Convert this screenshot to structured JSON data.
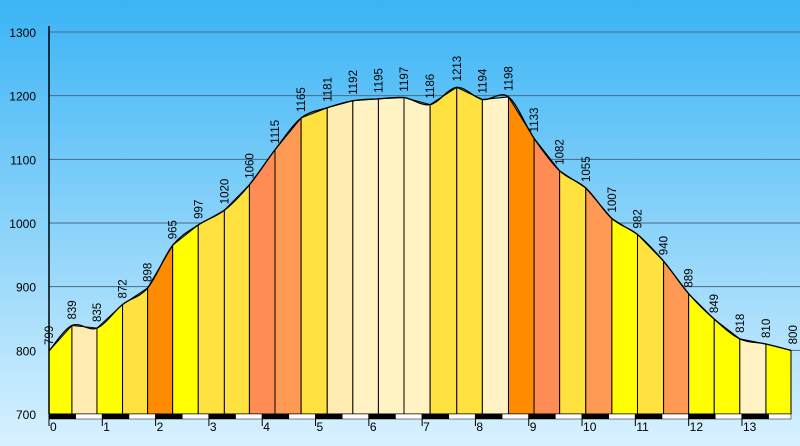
{
  "chart_data": {
    "type": "area",
    "title": "",
    "xlabel": "",
    "ylabel": "",
    "xlim": [
      0,
      13.92
    ],
    "ylim": [
      700,
      1300
    ],
    "yticks": [
      700,
      800,
      900,
      1000,
      1100,
      1200,
      1300
    ],
    "xticks": [
      0,
      1,
      2,
      3,
      4,
      5,
      6,
      7,
      8,
      9,
      10,
      11,
      12,
      13
    ],
    "grid": true,
    "colors": {
      "background_top": "#3bb4f5",
      "background_bottom": "#d8f1ff",
      "outline": "#000000",
      "segment_palette": [
        "#ffff00",
        "#fff59a",
        "#ffe240",
        "#ff8c00",
        "#ff9a55",
        "#ffecb0"
      ]
    },
    "points": [
      {
        "x": 0.0,
        "y": 799,
        "label": "799",
        "color": "#ffff00"
      },
      {
        "x": 0.43,
        "y": 839,
        "label": "839",
        "color": "#ffecb0"
      },
      {
        "x": 0.9,
        "y": 835,
        "label": "835",
        "color": "#ffff00"
      },
      {
        "x": 1.38,
        "y": 872,
        "label": "872",
        "color": "#ffe240"
      },
      {
        "x": 1.85,
        "y": 898,
        "label": "898",
        "color": "#ff8c00"
      },
      {
        "x": 2.32,
        "y": 965,
        "label": "965",
        "color": "#ffff00"
      },
      {
        "x": 2.8,
        "y": 997,
        "label": "997",
        "color": "#ffe240"
      },
      {
        "x": 3.29,
        "y": 1020,
        "label": "1020",
        "color": "#ffe240"
      },
      {
        "x": 3.76,
        "y": 1060,
        "label": "1060",
        "color": "#ff8c55"
      },
      {
        "x": 4.24,
        "y": 1115,
        "label": "1115",
        "color": "#ff9a55"
      },
      {
        "x": 4.73,
        "y": 1165,
        "label": "1165",
        "color": "#ffe240"
      },
      {
        "x": 5.22,
        "y": 1181,
        "label": "1181",
        "color": "#ffecb0"
      },
      {
        "x": 5.7,
        "y": 1192,
        "label": "1192",
        "color": "#fff3c4"
      },
      {
        "x": 6.18,
        "y": 1195,
        "label": "1195",
        "color": "#fff3c4"
      },
      {
        "x": 6.66,
        "y": 1197,
        "label": "1197",
        "color": "#fff3c4"
      },
      {
        "x": 7.15,
        "y": 1186,
        "label": "1186",
        "color": "#ffe240"
      },
      {
        "x": 7.65,
        "y": 1213,
        "label": "1213",
        "color": "#ffe240"
      },
      {
        "x": 8.13,
        "y": 1194,
        "label": "1194",
        "color": "#fff3c4"
      },
      {
        "x": 8.62,
        "y": 1198,
        "label": "1198",
        "color": "#ff8c00"
      },
      {
        "x": 9.1,
        "y": 1133,
        "label": "1133",
        "color": "#ff8c55"
      },
      {
        "x": 9.58,
        "y": 1082,
        "label": "1082",
        "color": "#ffe240"
      },
      {
        "x": 10.07,
        "y": 1055,
        "label": "1055",
        "color": "#ff9a55"
      },
      {
        "x": 10.56,
        "y": 1007,
        "label": "1007",
        "color": "#ffff00"
      },
      {
        "x": 11.04,
        "y": 982,
        "label": "982",
        "color": "#ffe240"
      },
      {
        "x": 11.53,
        "y": 940,
        "label": "940",
        "color": "#ff9a55"
      },
      {
        "x": 12.0,
        "y": 889,
        "label": "889",
        "color": "#ffff00"
      },
      {
        "x": 12.48,
        "y": 849,
        "label": "849",
        "color": "#ffff00"
      },
      {
        "x": 12.96,
        "y": 818,
        "label": "818",
        "color": "#fff3c4"
      },
      {
        "x": 13.45,
        "y": 810,
        "label": "810",
        "color": "#ffff00"
      },
      {
        "x": 13.92,
        "y": 800,
        "label": "800",
        "color": null
      }
    ]
  }
}
